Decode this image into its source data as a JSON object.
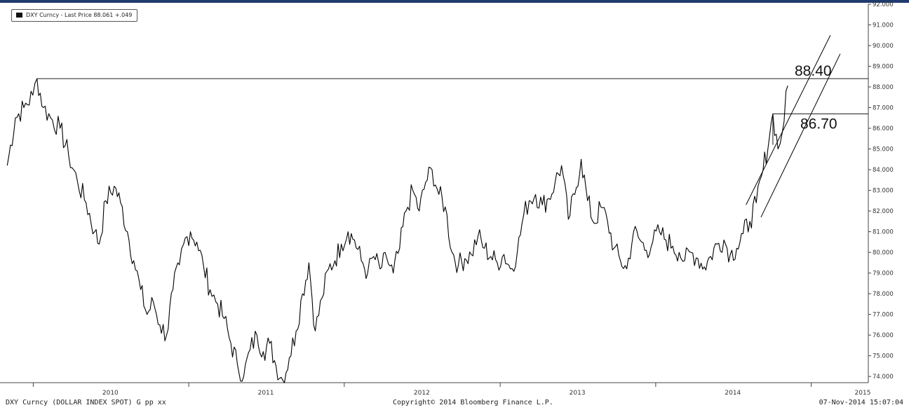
{
  "legend": {
    "text": "DXY Curncy - Last Price 88.061 +.049"
  },
  "footer": {
    "left": "DXY Curncy (DOLLAR INDEX SPOT) G pp xx",
    "center": "Copyright© 2014 Bloomberg Finance L.P.",
    "right": "07-Nov-2014 15:07:04"
  },
  "colors": {
    "series": "#000000",
    "top_rule": "#1f3a6d",
    "axis": "#444444"
  },
  "chart_data": {
    "type": "line",
    "title": "",
    "xlabel": "",
    "ylabel": "",
    "ylim": [
      73.7,
      92.0
    ],
    "xlim": [
      "2009-10-15",
      "2015-05-15"
    ],
    "y_ticks": [
      "92.000",
      "91.000",
      "90.000",
      "89.000",
      "88.000",
      "87.000",
      "86.000",
      "85.000",
      "84.000",
      "83.000",
      "82.000",
      "81.000",
      "80.000",
      "79.000",
      "78.000",
      "77.000",
      "76.000",
      "75.000",
      "74.000"
    ],
    "x_tick_labels": [
      "2010",
      "2011",
      "2012",
      "2013",
      "2014",
      "2015"
    ],
    "series": [
      {
        "values": [
          [
            "2009-11-01",
            84.2
          ],
          [
            "2009-11-20",
            86.5
          ],
          [
            "2009-12-10",
            87.0
          ],
          [
            "2009-12-31",
            87.6
          ],
          [
            "2010-01-10",
            88.4
          ],
          [
            "2010-01-25",
            87.0
          ],
          [
            "2010-02-15",
            86.4
          ],
          [
            "2010-03-05",
            86.0
          ],
          [
            "2010-03-25",
            84.7
          ],
          [
            "2010-04-15",
            83.4
          ],
          [
            "2010-05-05",
            82.4
          ],
          [
            "2010-05-25",
            81.0
          ],
          [
            "2010-06-05",
            80.4
          ],
          [
            "2010-06-20",
            82.5
          ],
          [
            "2010-07-10",
            83.2
          ],
          [
            "2010-07-25",
            82.4
          ],
          [
            "2010-08-10",
            81.0
          ],
          [
            "2010-08-25",
            79.6
          ],
          [
            "2010-09-10",
            78.2
          ],
          [
            "2010-09-25",
            77.0
          ],
          [
            "2010-10-10",
            77.6
          ],
          [
            "2010-10-25",
            76.5
          ],
          [
            "2010-11-10",
            76.0
          ],
          [
            "2010-11-25",
            78.2
          ],
          [
            "2010-12-10",
            79.4
          ],
          [
            "2010-12-20",
            80.4
          ],
          [
            "2011-01-05",
            81.0
          ],
          [
            "2011-01-20",
            80.5
          ],
          [
            "2011-02-05",
            79.3
          ],
          [
            "2011-02-20",
            78.2
          ],
          [
            "2011-03-10",
            77.5
          ],
          [
            "2011-03-25",
            76.8
          ],
          [
            "2011-04-10",
            75.6
          ],
          [
            "2011-04-25",
            74.6
          ],
          [
            "2011-05-10",
            74.0
          ],
          [
            "2011-05-25",
            75.3
          ],
          [
            "2011-06-10",
            76.0
          ],
          [
            "2011-06-25",
            75.2
          ],
          [
            "2011-07-10",
            75.6
          ],
          [
            "2011-07-25",
            74.5
          ],
          [
            "2011-08-10",
            73.8
          ],
          [
            "2011-08-25",
            74.9
          ],
          [
            "2011-09-10",
            76.2
          ],
          [
            "2011-09-25",
            78.0
          ],
          [
            "2011-10-10",
            79.5
          ],
          [
            "2011-10-25",
            76.2
          ],
          [
            "2011-11-10",
            77.8
          ],
          [
            "2011-11-25",
            79.2
          ],
          [
            "2011-12-10",
            79.6
          ],
          [
            "2011-12-25",
            80.4
          ],
          [
            "2012-01-10",
            81.0
          ],
          [
            "2012-01-25",
            80.6
          ],
          [
            "2012-02-10",
            79.6
          ],
          [
            "2012-02-25",
            79.0
          ],
          [
            "2012-03-10",
            79.8
          ],
          [
            "2012-03-25",
            79.2
          ],
          [
            "2012-04-10",
            79.7
          ],
          [
            "2012-04-25",
            79.0
          ],
          [
            "2012-05-10",
            80.2
          ],
          [
            "2012-05-25",
            82.0
          ],
          [
            "2012-06-10",
            83.0
          ],
          [
            "2012-06-25",
            82.0
          ],
          [
            "2012-07-10",
            83.4
          ],
          [
            "2012-07-25",
            84.0
          ],
          [
            "2012-08-10",
            82.8
          ],
          [
            "2012-08-25",
            82.2
          ],
          [
            "2012-09-10",
            80.0
          ],
          [
            "2012-09-25",
            79.4
          ],
          [
            "2012-10-10",
            79.7
          ],
          [
            "2012-10-25",
            79.9
          ],
          [
            "2012-11-10",
            80.8
          ],
          [
            "2012-11-25",
            80.2
          ],
          [
            "2012-12-10",
            79.8
          ],
          [
            "2012-12-25",
            79.5
          ],
          [
            "2013-01-10",
            79.9
          ],
          [
            "2013-01-25",
            79.2
          ],
          [
            "2013-02-10",
            80.0
          ],
          [
            "2013-02-25",
            81.8
          ],
          [
            "2013-03-10",
            82.5
          ],
          [
            "2013-03-25",
            82.8
          ],
          [
            "2013-04-10",
            82.3
          ],
          [
            "2013-04-25",
            82.6
          ],
          [
            "2013-05-10",
            83.4
          ],
          [
            "2013-05-25",
            84.2
          ],
          [
            "2013-06-10",
            81.6
          ],
          [
            "2013-06-25",
            82.8
          ],
          [
            "2013-07-10",
            84.5
          ],
          [
            "2013-07-25",
            82.5
          ],
          [
            "2013-08-10",
            81.4
          ],
          [
            "2013-08-25",
            82.2
          ],
          [
            "2013-09-10",
            81.5
          ],
          [
            "2013-09-25",
            80.2
          ],
          [
            "2013-10-10",
            79.6
          ],
          [
            "2013-10-25",
            79.2
          ],
          [
            "2013-11-10",
            81.0
          ],
          [
            "2013-11-25",
            80.6
          ],
          [
            "2013-12-10",
            80.1
          ],
          [
            "2013-12-25",
            80.5
          ],
          [
            "2014-01-10",
            81.0
          ],
          [
            "2014-01-25",
            80.6
          ],
          [
            "2014-02-10",
            80.3
          ],
          [
            "2014-02-25",
            80.0
          ],
          [
            "2014-03-10",
            79.6
          ],
          [
            "2014-03-25",
            80.0
          ],
          [
            "2014-04-10",
            79.7
          ],
          [
            "2014-04-25",
            79.3
          ],
          [
            "2014-05-10",
            79.8
          ],
          [
            "2014-05-25",
            80.4
          ],
          [
            "2014-06-10",
            80.6
          ],
          [
            "2014-06-25",
            79.9
          ],
          [
            "2014-07-10",
            80.2
          ],
          [
            "2014-07-25",
            80.9
          ],
          [
            "2014-08-10",
            81.5
          ],
          [
            "2014-08-25",
            82.4
          ],
          [
            "2014-09-10",
            84.0
          ],
          [
            "2014-09-25",
            85.6
          ],
          [
            "2014-10-03",
            86.7
          ],
          [
            "2014-10-15",
            85.0
          ],
          [
            "2014-10-25",
            85.8
          ],
          [
            "2014-11-07",
            88.061
          ]
        ]
      }
    ],
    "annotations": [
      {
        "type": "hline",
        "value": 88.4,
        "label": "88.40",
        "from": "2010-01-10"
      },
      {
        "type": "hline",
        "value": 86.7,
        "label": "86.70",
        "from": "2014-10-03"
      }
    ],
    "trend_channel": [
      {
        "from": [
          "2014-08-01",
          82.3
        ],
        "to": [
          "2015-02-15",
          90.5
        ]
      },
      {
        "from": [
          "2014-09-05",
          81.7
        ],
        "to": [
          "2015-03-10",
          89.6
        ]
      }
    ],
    "grid": false,
    "legend_position": "top-left"
  }
}
